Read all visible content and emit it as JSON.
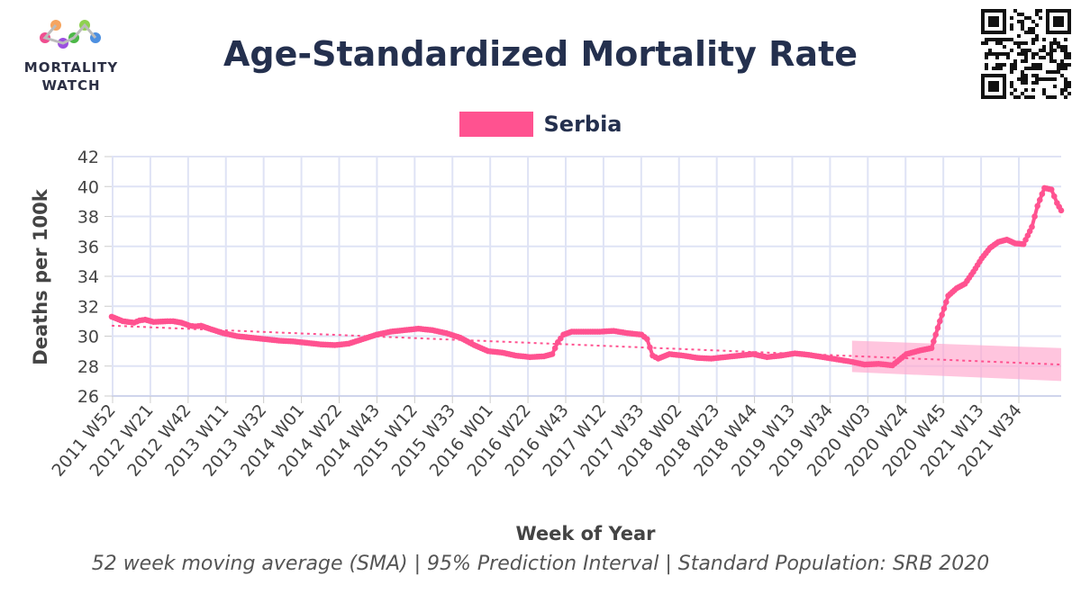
{
  "logo": {
    "line1": "MORTALITY",
    "line2": "WATCH"
  },
  "title": "Age-Standardized Mortality Rate",
  "legend": {
    "series_name": "Serbia"
  },
  "footer": "52 week moving average (SMA) | 95% Prediction Interval | Standard Population: SRB 2020",
  "colors": {
    "series": "#ff5290",
    "pi_band": "#ffa6cc",
    "grid": "#dfe3f5",
    "title": "#24304e"
  },
  "chart_data": {
    "type": "line",
    "title": "Age-Standardized Mortality Rate",
    "xlabel": "Week of Year",
    "ylabel": "Deaths per 100k",
    "ylim": [
      26,
      42
    ],
    "yticks": [
      26,
      28,
      30,
      32,
      34,
      36,
      38,
      40,
      42
    ],
    "x_tick_labels": [
      "2011 W52",
      "2012 W21",
      "2012 W42",
      "2013 W11",
      "2013 W32",
      "2014 W01",
      "2014 W22",
      "2014 W43",
      "2015 W12",
      "2015 W33",
      "2016 W01",
      "2016 W22",
      "2016 W43",
      "2017 W12",
      "2017 W33",
      "2018 W02",
      "2018 W23",
      "2018 W44",
      "2019 W13",
      "2019 W34",
      "2020 W03",
      "2020 W24",
      "2020 W45",
      "2021 W13",
      "2021 W34"
    ],
    "grid": true,
    "legend_position": "top-center",
    "series": [
      {
        "name": "Serbia",
        "points": [
          [
            0,
            31.3
          ],
          [
            0.4,
            31.0
          ],
          [
            0.8,
            30.9
          ],
          [
            1.0,
            31.05
          ],
          [
            1.2,
            31.1
          ],
          [
            1.5,
            30.95
          ],
          [
            2.0,
            31.0
          ],
          [
            2.2,
            31.0
          ],
          [
            2.5,
            30.9
          ],
          [
            2.8,
            30.7
          ],
          [
            3.0,
            30.65
          ],
          [
            3.2,
            30.7
          ],
          [
            3.5,
            30.5
          ],
          [
            4.0,
            30.2
          ],
          [
            4.5,
            30.0
          ],
          [
            5.0,
            29.9
          ],
          [
            5.5,
            29.8
          ],
          [
            6.0,
            29.7
          ],
          [
            6.5,
            29.65
          ],
          [
            7.0,
            29.55
          ],
          [
            7.5,
            29.45
          ],
          [
            8.0,
            29.4
          ],
          [
            8.5,
            29.5
          ],
          [
            9.0,
            29.8
          ],
          [
            9.5,
            30.1
          ],
          [
            10.0,
            30.3
          ],
          [
            10.5,
            30.4
          ],
          [
            11.0,
            30.5
          ],
          [
            11.5,
            30.4
          ],
          [
            12.0,
            30.2
          ],
          [
            12.5,
            29.9
          ],
          [
            13.0,
            29.4
          ],
          [
            13.5,
            29.0
          ],
          [
            14.0,
            28.9
          ],
          [
            14.5,
            28.7
          ],
          [
            15.0,
            28.6
          ],
          [
            15.5,
            28.65
          ],
          [
            15.8,
            28.8
          ],
          [
            16.0,
            29.6
          ],
          [
            16.2,
            30.1
          ],
          [
            16.5,
            30.3
          ],
          [
            17.0,
            30.3
          ],
          [
            17.5,
            30.3
          ],
          [
            18.0,
            30.35
          ],
          [
            18.5,
            30.2
          ],
          [
            19.0,
            30.1
          ],
          [
            19.2,
            29.8
          ],
          [
            19.4,
            28.7
          ],
          [
            19.6,
            28.5
          ],
          [
            20.0,
            28.8
          ],
          [
            20.5,
            28.7
          ],
          [
            21.0,
            28.55
          ],
          [
            21.5,
            28.5
          ],
          [
            22.0,
            28.6
          ],
          [
            22.5,
            28.7
          ],
          [
            23.0,
            28.8
          ],
          [
            23.5,
            28.6
          ],
          [
            24.0,
            28.7
          ],
          [
            24.5,
            28.85
          ],
          [
            25.0,
            28.75
          ],
          [
            25.5,
            28.6
          ],
          [
            26.0,
            28.45
          ],
          [
            26.5,
            28.3
          ],
          [
            27.0,
            28.1
          ],
          [
            27.5,
            28.15
          ],
          [
            28.0,
            28.05
          ],
          [
            28.5,
            28.8
          ],
          [
            29.0,
            29.05
          ],
          [
            29.4,
            29.2
          ],
          [
            29.7,
            31.0
          ],
          [
            30.0,
            32.7
          ],
          [
            30.3,
            33.2
          ],
          [
            30.6,
            33.5
          ],
          [
            30.9,
            34.3
          ],
          [
            31.2,
            35.2
          ],
          [
            31.5,
            35.9
          ],
          [
            31.8,
            36.3
          ],
          [
            32.1,
            36.45
          ],
          [
            32.4,
            36.2
          ],
          [
            32.7,
            36.15
          ],
          [
            33.0,
            37.3
          ],
          [
            33.2,
            38.7
          ],
          [
            33.45,
            39.9
          ],
          [
            33.7,
            39.8
          ],
          [
            33.9,
            38.9
          ],
          [
            34.05,
            38.4
          ]
        ]
      }
    ],
    "trend_line": {
      "start": [
        0,
        30.7
      ],
      "end": [
        34.05,
        28.1
      ]
    },
    "prediction_interval": {
      "x_start": 26.55,
      "x_end": 34.05,
      "upper_start": 29.7,
      "upper_end": 29.2,
      "lower_start": 27.6,
      "lower_end": 27.0
    }
  }
}
